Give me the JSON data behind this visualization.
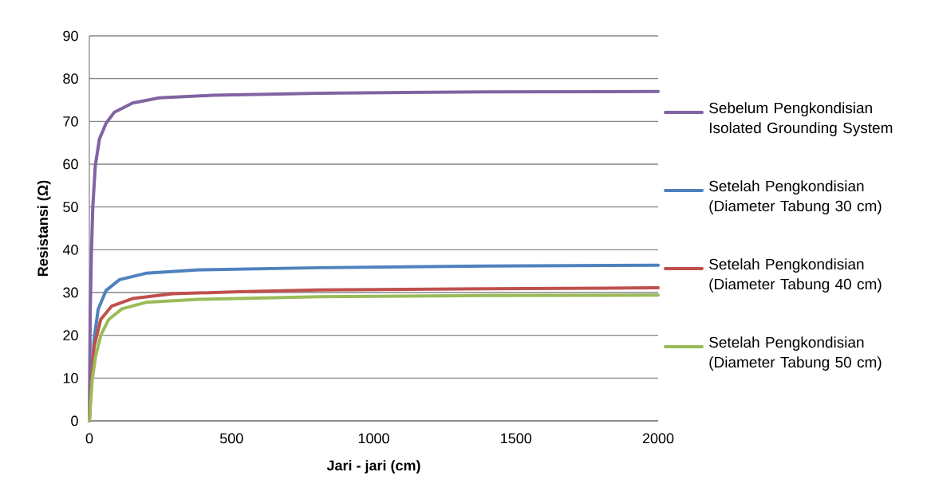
{
  "chart_data": {
    "type": "line",
    "xlabel": "Jari - jari (cm)",
    "ylabel": "Resistansi (Ω)",
    "xlim": [
      0,
      2000
    ],
    "xticks": [
      0,
      500,
      1000,
      1500,
      2000
    ],
    "ylim": [
      0,
      90
    ],
    "yticks": [
      0,
      10,
      20,
      30,
      40,
      50,
      60,
      70,
      80,
      90
    ],
    "grid": "y",
    "legend": "right",
    "line_style": "solid",
    "marker": "none",
    "series": [
      {
        "name": "Sebelum Pengkondisian Isolated Grounding System",
        "color": "#8064a2",
        "x": [
          0,
          3,
          7.5,
          12,
          21,
          35.5,
          59,
          87,
          152,
          246,
          433,
          807,
          1400,
          2000
        ],
        "values": [
          0,
          25,
          39.8,
          49.8,
          59.7,
          65.9,
          69.6,
          72.1,
          74.3,
          75.5,
          76.1,
          76.6,
          76.9,
          77
        ]
      },
      {
        "name": "Setelah Pengkondisian (Diameter Tabung 30 cm)",
        "color": "#4f81bd",
        "x": [
          0,
          8,
          17,
          31,
          59,
          106,
          199,
          386,
          807,
          1400,
          2000
        ],
        "values": [
          0,
          11,
          19.3,
          26.1,
          30.5,
          33,
          34.5,
          35.3,
          35.8,
          36.2,
          36.4
        ]
      },
      {
        "name": "Setelah Pengkondisian (Diameter Tabung 40 cm)",
        "color": "#c0504d",
        "x": [
          0,
          8,
          17,
          40,
          78,
          152,
          293,
          526,
          807,
          1400,
          2000
        ],
        "values": [
          0,
          10,
          17.5,
          23.7,
          26.8,
          28.6,
          29.7,
          30.2,
          30.6,
          30.9,
          31.1
        ]
      },
      {
        "name": "Setelah Pengkondisian (Diameter Tabung 50 cm)",
        "color": "#9bbb59",
        "x": [
          0,
          10,
          21.5,
          40,
          68,
          115,
          199,
          386,
          807,
          1400,
          2000
        ],
        "values": [
          0,
          9.5,
          15,
          20,
          23.7,
          26.2,
          27.7,
          28.4,
          29,
          29.3,
          29.4
        ]
      }
    ]
  }
}
